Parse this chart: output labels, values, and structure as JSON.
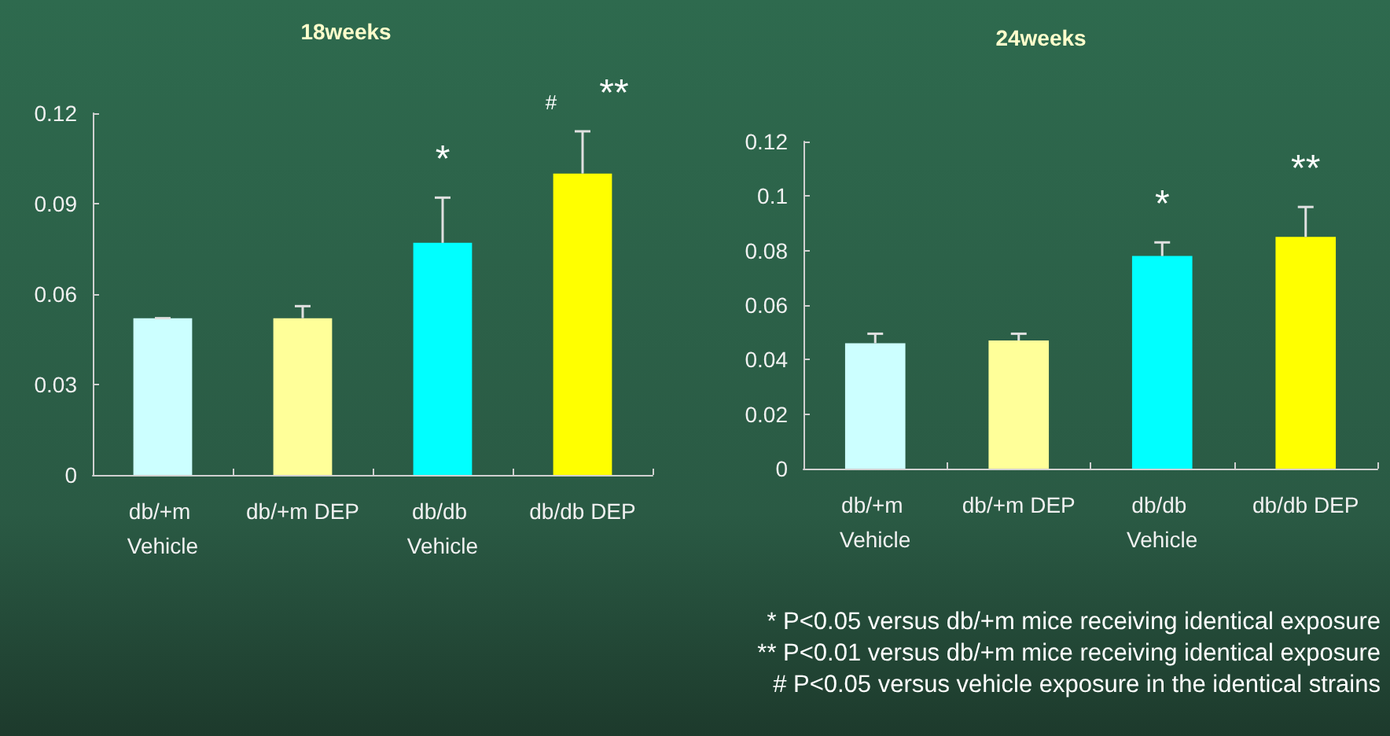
{
  "chart_data": [
    {
      "type": "bar",
      "title": "18weeks",
      "categories": [
        "db/+m Vehicle",
        "db/+m DEP",
        "db/db Vehicle",
        "db/db DEP"
      ],
      "values": [
        0.052,
        0.052,
        0.077,
        0.1
      ],
      "colors": [
        "#ccffff",
        "#ffff99",
        "#00ffff",
        "#ffff00"
      ],
      "errors": [
        [
          0.052,
          0.052
        ],
        [
          0.052,
          0.056
        ],
        [
          0.077,
          0.092
        ],
        [
          0.1,
          0.114
        ]
      ],
      "ylim": [
        0,
        0.12
      ],
      "yticks": [
        0,
        0.03,
        0.06,
        0.09,
        0.12
      ],
      "grid": false,
      "annotations": [
        {
          "text": "*",
          "x": "db/db Vehicle",
          "y": 0.092
        },
        {
          "text": "#",
          "x": "db/db DEP",
          "y": 0.114
        },
        {
          "text": "**",
          "x": "db/db DEP",
          "y": 0.114
        }
      ]
    },
    {
      "type": "bar",
      "title": "24weeks",
      "categories": [
        "db/+m Vehicle",
        "db/+m DEP",
        "db/db Vehicle",
        "db/db DEP"
      ],
      "values": [
        0.046,
        0.047,
        0.078,
        0.085
      ],
      "colors": [
        "#ccffff",
        "#ffff99",
        "#00ffff",
        "#ffff00"
      ],
      "errors": [
        [
          0.046,
          0.0495
        ],
        [
          0.047,
          0.0495
        ],
        [
          0.078,
          0.083
        ],
        [
          0.085,
          0.096
        ]
      ],
      "ylim": [
        0,
        0.12
      ],
      "yticks": [
        0,
        0.02,
        0.04,
        0.06,
        0.08,
        0.1,
        0.12
      ],
      "grid": false,
      "annotations": [
        {
          "text": "*",
          "x": "db/db Vehicle",
          "y": 0.083
        },
        {
          "text": "**",
          "x": "db/db DEP",
          "y": 0.096
        },
        "* P<0.05 versus db/+m mice receiving identical exposure",
        "** P<0.01 versus db/+m mice receiving identical exposure",
        "# P<0.05 versus vehicle exposure in the identical strains"
      ]
    }
  ]
}
